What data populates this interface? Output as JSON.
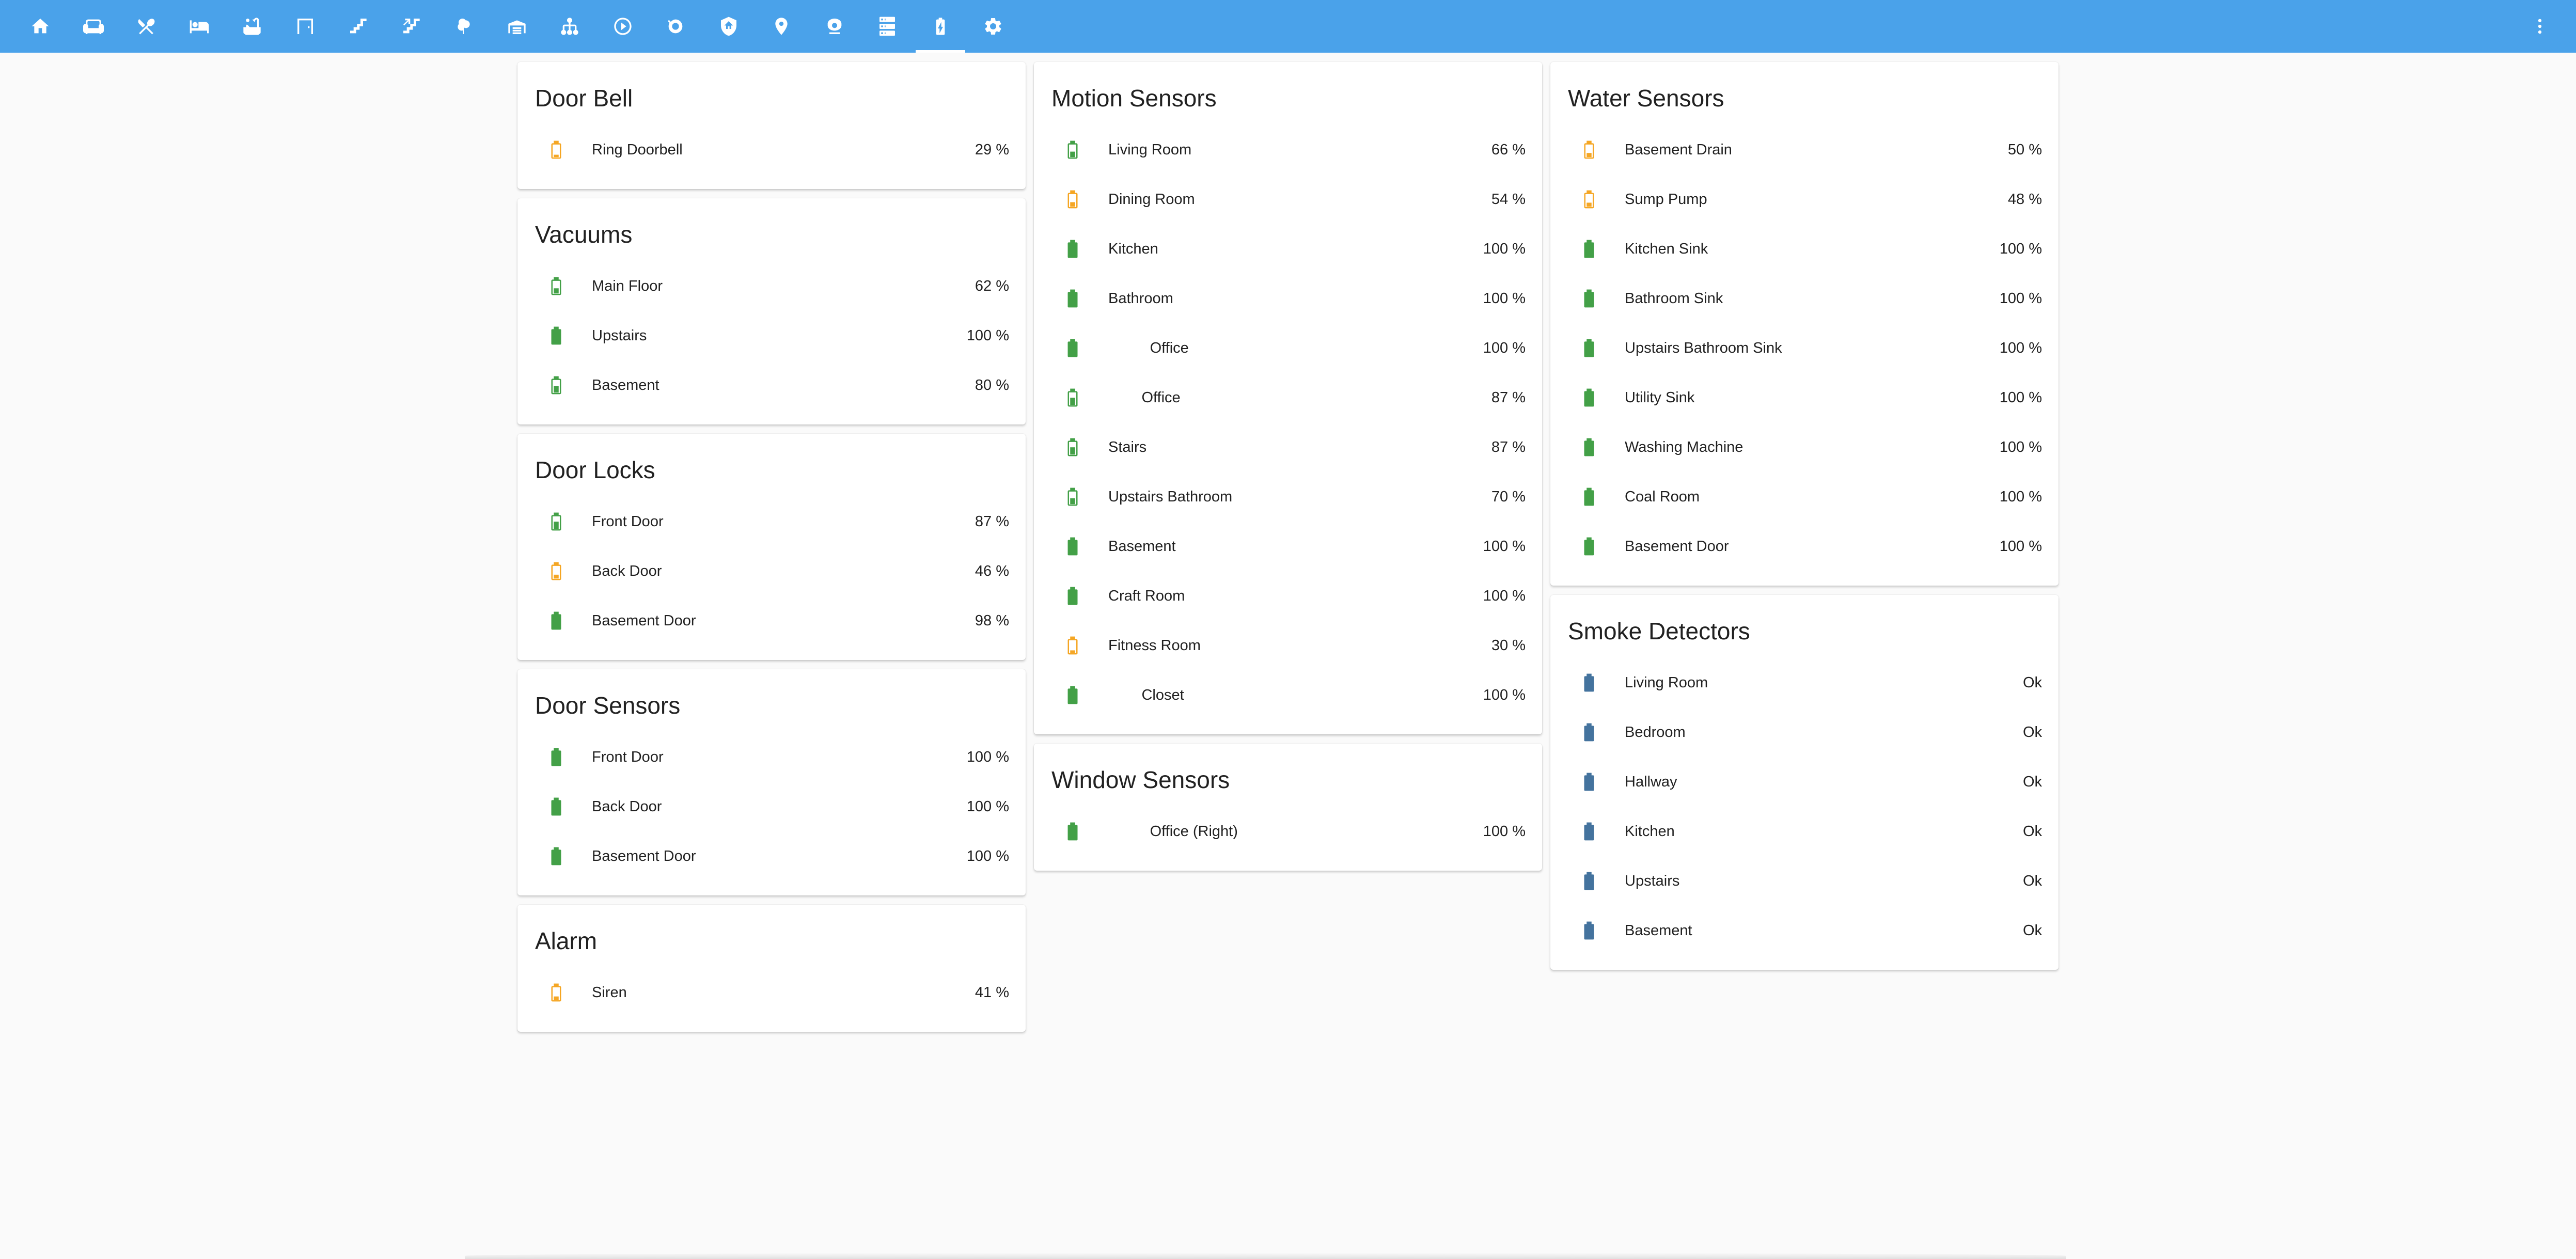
{
  "toolbar": {
    "tabs": [
      {
        "icon": "home-icon"
      },
      {
        "icon": "sofa-icon"
      },
      {
        "icon": "silverware-icon"
      },
      {
        "icon": "bed-icon"
      },
      {
        "icon": "bathtub-icon"
      },
      {
        "icon": "door-icon"
      },
      {
        "icon": "stairs-icon"
      },
      {
        "icon": "stairs-up-icon"
      },
      {
        "icon": "tree-icon"
      },
      {
        "icon": "garage-icon"
      },
      {
        "icon": "network-icon"
      },
      {
        "icon": "play-circle-icon"
      },
      {
        "icon": "robot-vacuum-icon"
      },
      {
        "icon": "shield-home-icon"
      },
      {
        "icon": "map-marker-icon"
      },
      {
        "icon": "cctv-icon"
      },
      {
        "icon": "server-icon"
      },
      {
        "icon": "battery-charging-icon",
        "active": true
      },
      {
        "icon": "gear-icon"
      }
    ],
    "menu_icon": "dots-vertical-icon"
  },
  "colors": {
    "header": "#4aa2ea",
    "battery_green": "#43a047",
    "battery_orange": "#f5a623",
    "battery_blue": "#44739e"
  },
  "cards": [
    {
      "id": "door-bell",
      "title": "Door Bell",
      "rows": [
        {
          "label": "Ring Doorbell",
          "value": "29 %",
          "level": 29
        }
      ]
    },
    {
      "id": "vacuums",
      "title": "Vacuums",
      "rows": [
        {
          "label": "Main Floor",
          "value": "62 %",
          "level": 62
        },
        {
          "label": "Upstairs",
          "value": "100 %",
          "level": 100
        },
        {
          "label": "Basement",
          "value": "80 %",
          "level": 80
        }
      ]
    },
    {
      "id": "door-locks",
      "title": "Door Locks",
      "rows": [
        {
          "label": "Front Door",
          "value": "87 %",
          "level": 87
        },
        {
          "label": "Back Door",
          "value": "46 %",
          "level": 46
        },
        {
          "label": "Basement Door",
          "value": "98 %",
          "level": 98
        }
      ]
    },
    {
      "id": "door-sensors",
      "title": "Door Sensors",
      "rows": [
        {
          "label": "Front Door",
          "value": "100 %",
          "level": 100
        },
        {
          "label": "Back Door",
          "value": "100 %",
          "level": 100
        },
        {
          "label": "Basement Door",
          "value": "100 %",
          "level": 100
        }
      ]
    },
    {
      "id": "alarm",
      "title": "Alarm",
      "rows": [
        {
          "label": "Siren",
          "value": "41 %",
          "level": 41
        }
      ]
    },
    {
      "id": "motion-sensors",
      "title": "Motion Sensors",
      "rows": [
        {
          "label": "Living Room",
          "value": "66 %",
          "level": 66
        },
        {
          "label": "Dining Room",
          "value": "54 %",
          "level": 54
        },
        {
          "label": "Kitchen",
          "value": "100 %",
          "level": 100
        },
        {
          "label": "Bathroom",
          "value": "100 %",
          "level": 100
        },
        {
          "label": "          Office",
          "value": "100 %",
          "level": 100
        },
        {
          "label": "        Office",
          "value": "87 %",
          "level": 87
        },
        {
          "label": "Stairs",
          "value": "87 %",
          "level": 87
        },
        {
          "label": "Upstairs Bathroom",
          "value": "70 %",
          "level": 70
        },
        {
          "label": "Basement",
          "value": "100 %",
          "level": 100
        },
        {
          "label": "Craft Room",
          "value": "100 %",
          "level": 100
        },
        {
          "label": "Fitness Room",
          "value": "30 %",
          "level": 30
        },
        {
          "label": "        Closet",
          "value": "100 %",
          "level": 100
        }
      ]
    },
    {
      "id": "window-sensors",
      "title": "Window Sensors",
      "rows": [
        {
          "label": "          Office (Right)",
          "value": "100 %",
          "level": 100
        }
      ]
    },
    {
      "id": "water-sensors",
      "title": "Water Sensors",
      "rows": [
        {
          "label": "Basement Drain",
          "value": "50 %",
          "level": 50
        },
        {
          "label": "Sump Pump",
          "value": "48 %",
          "level": 48
        },
        {
          "label": "Kitchen Sink",
          "value": "100 %",
          "level": 100
        },
        {
          "label": "Bathroom Sink",
          "value": "100 %",
          "level": 100
        },
        {
          "label": "Upstairs Bathroom Sink",
          "value": "100 %",
          "level": 100
        },
        {
          "label": "Utility Sink",
          "value": "100 %",
          "level": 100
        },
        {
          "label": "Washing Machine",
          "value": "100 %",
          "level": 100
        },
        {
          "label": "Coal Room",
          "value": "100 %",
          "level": 100
        },
        {
          "label": "Basement Door",
          "value": "100 %",
          "level": 100
        }
      ]
    },
    {
      "id": "smoke-detectors",
      "title": "Smoke Detectors",
      "rows": [
        {
          "label": "Living Room",
          "value": "Ok",
          "status": "ok"
        },
        {
          "label": "Bedroom",
          "value": "Ok",
          "status": "ok"
        },
        {
          "label": "Hallway",
          "value": "Ok",
          "status": "ok"
        },
        {
          "label": "Kitchen",
          "value": "Ok",
          "status": "ok"
        },
        {
          "label": "Upstairs",
          "value": "Ok",
          "status": "ok"
        },
        {
          "label": "Basement",
          "value": "Ok",
          "status": "ok"
        }
      ]
    }
  ]
}
